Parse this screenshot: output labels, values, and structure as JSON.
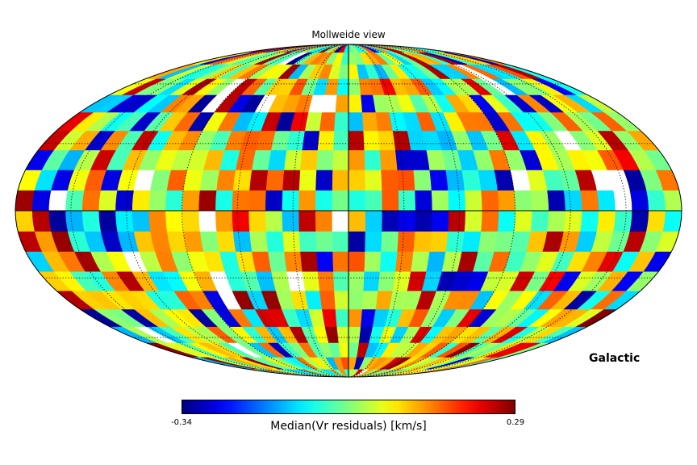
{
  "chart_data": {
    "type": "heatmap",
    "projection": "mollweide",
    "title": "Mollweide view",
    "coord_system": "Galactic",
    "colormap": "jet",
    "colorbar": {
      "label": "Median(Vr residuals) [km/s]",
      "min": -0.34,
      "max": 0.29,
      "min_label": "-0.34",
      "max_label": "0.29"
    },
    "graticule": {
      "meridians_deg": [
        -150,
        -120,
        -90,
        -60,
        -30,
        0,
        30,
        60,
        90,
        120,
        150
      ],
      "parallels_deg": [
        -60,
        -30,
        0,
        30,
        60
      ]
    },
    "pixel_grid": {
      "n_lon": 40,
      "n_lat": 20
    },
    "values": "pseudo-random field in [-0.34, 0.29] approximating HEALPix map"
  }
}
